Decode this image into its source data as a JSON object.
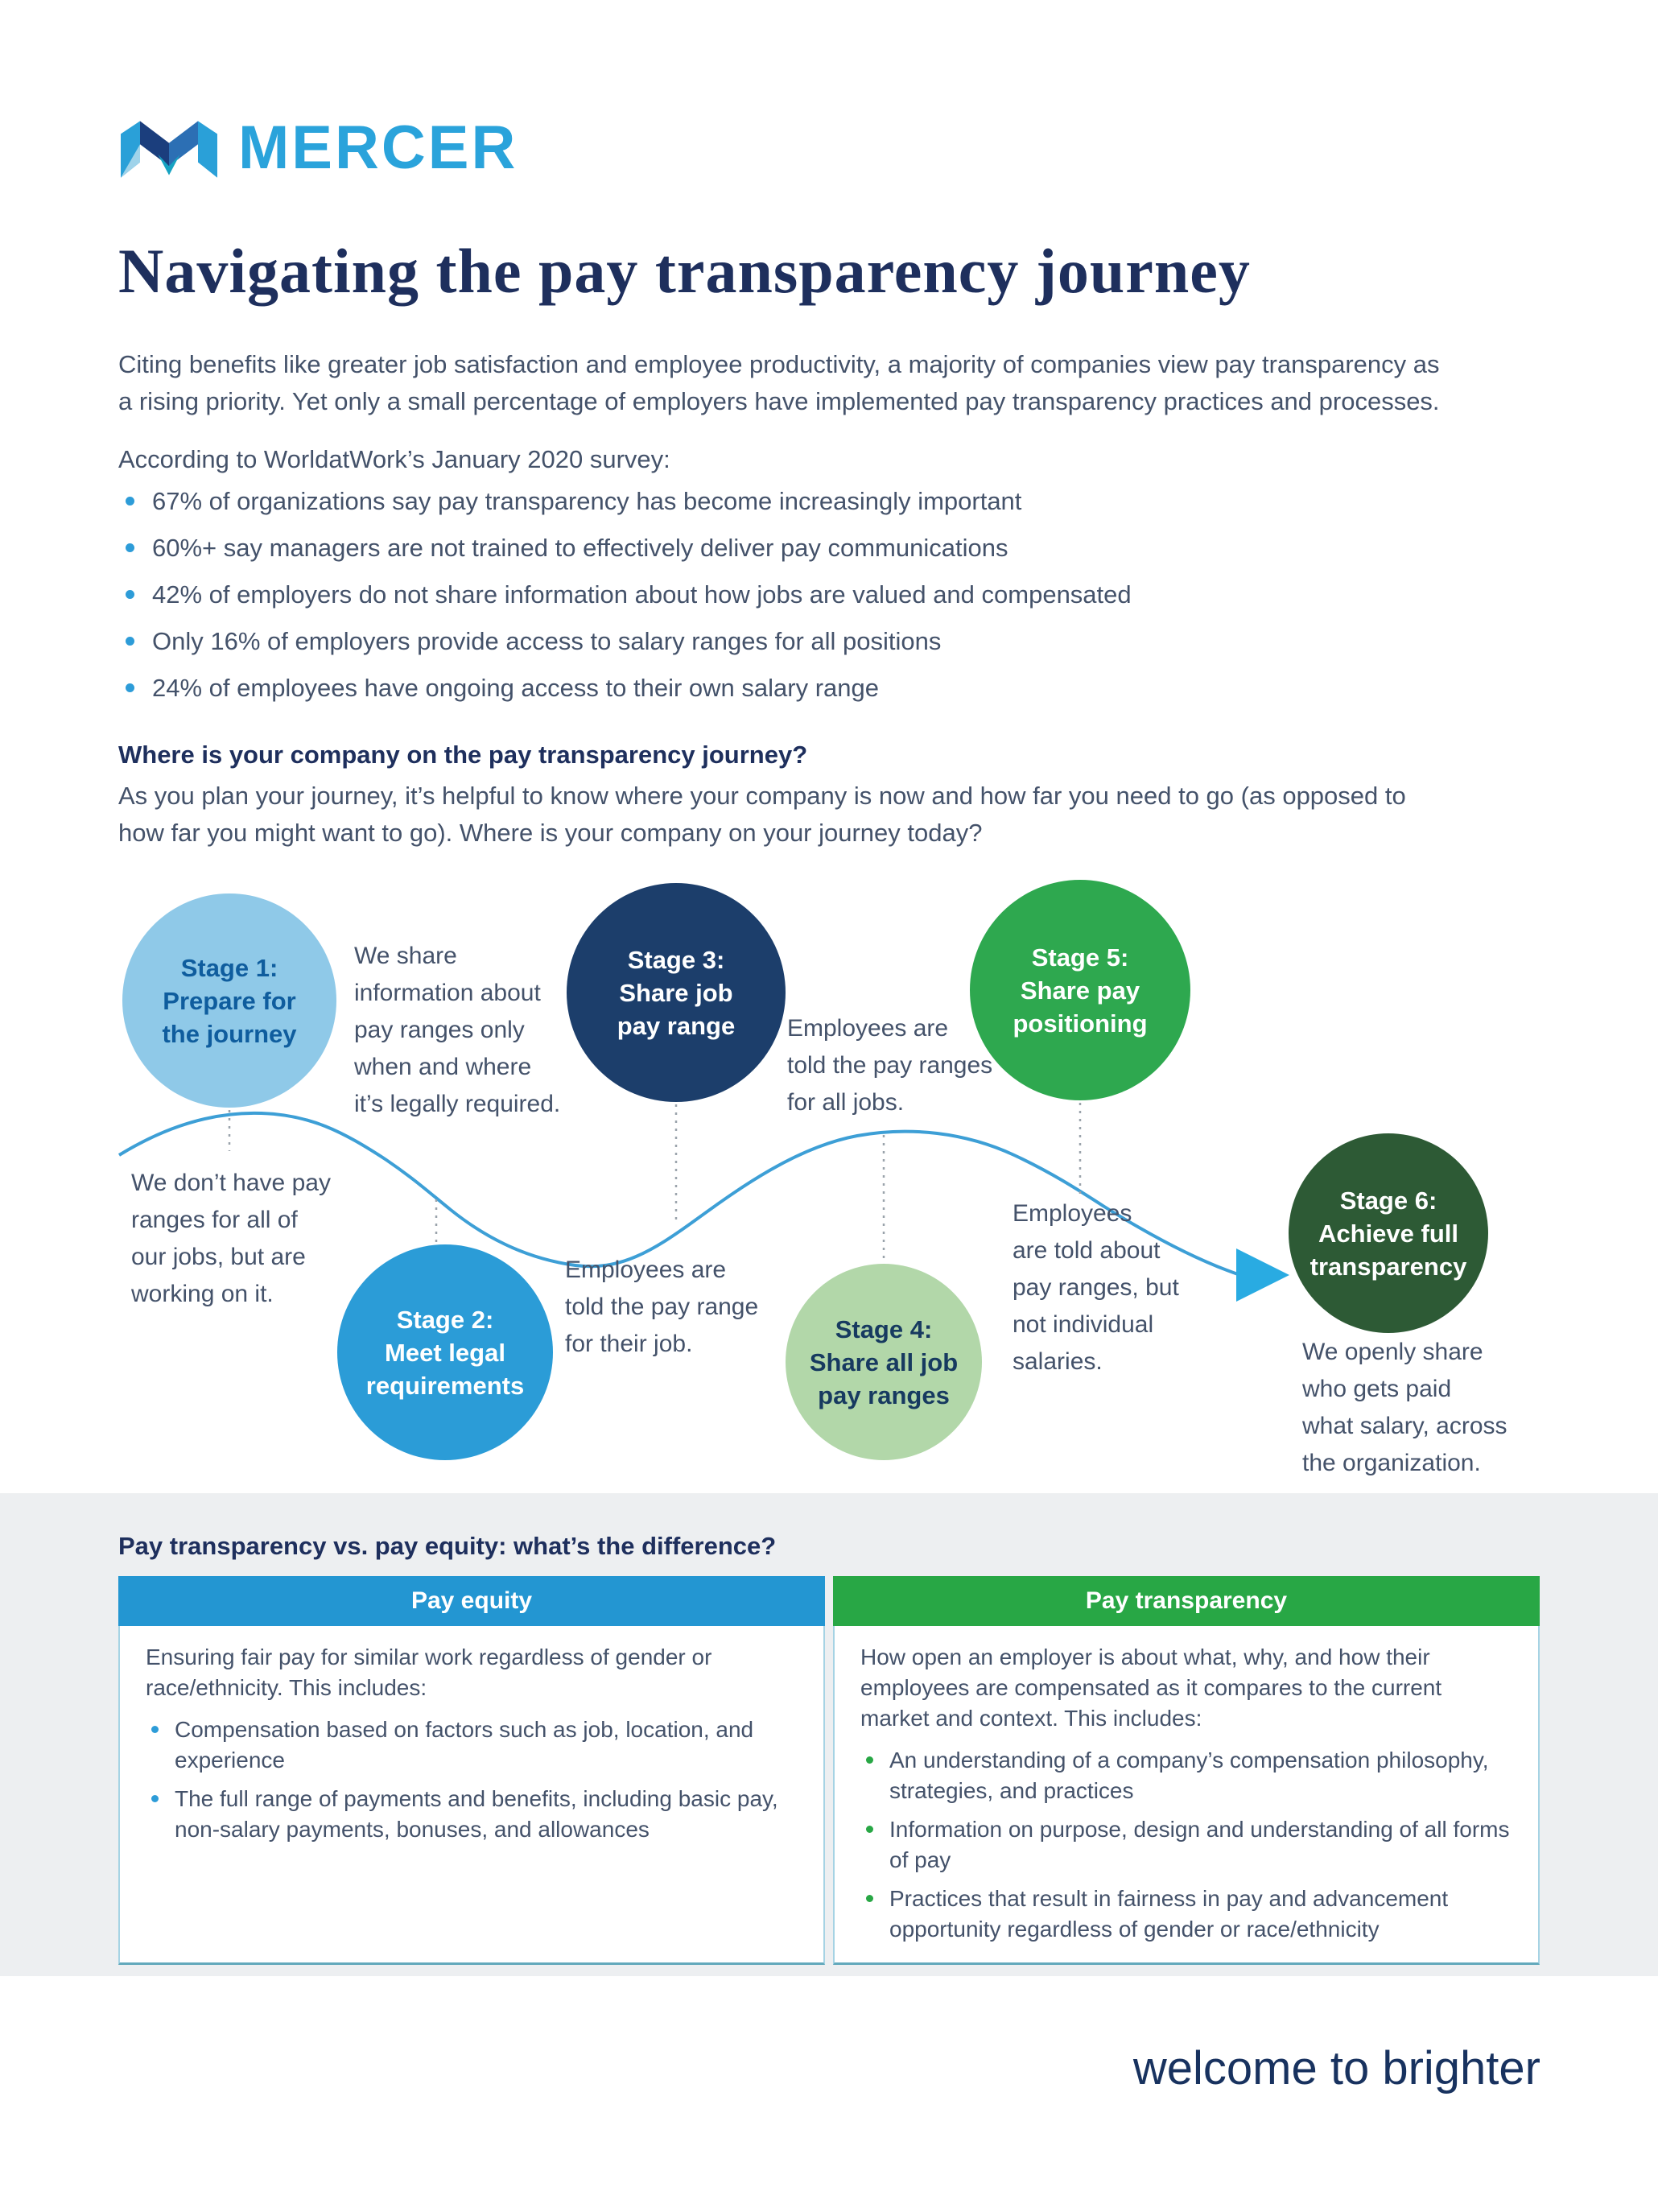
{
  "brand": {
    "wordmark": "MERCER"
  },
  "title": "Navigating the pay transparency journey",
  "intro_lines": [
    "Citing benefits like greater job satisfaction and employee productivity, a majority of companies view pay transparency as",
    "a rising priority. Yet only a small percentage of employers have implemented pay transparency practices and processes."
  ],
  "survey": {
    "heading": "According to WorldatWork’s January 2020 survey:",
    "bullets": [
      "67% of organizations say pay transparency has become increasingly important",
      "60%+ say managers are not trained to effectively deliver pay communications",
      "42% of employers do not share information about how jobs are valued and compensated",
      "Only 16% of employers provide access to salary ranges for all positions",
      "24% of employees have ongoing access to their own salary range"
    ]
  },
  "journey": {
    "heading": "Where is your company on the pay transparency journey?",
    "intro_lines": [
      "As you plan your journey, it’s helpful to know where your company is now and how far you need to go (as opposed to",
      "how far you might want to go). Where is your company on your journey today?"
    ],
    "stages": [
      {
        "lines": [
          "Stage 1:",
          "Prepare for",
          "the journey"
        ],
        "color": "#8FC9E8",
        "label_color": "#0F5D9E"
      },
      {
        "lines": [
          "Stage 2:",
          "Meet legal",
          "requirements"
        ],
        "color": "#2B9CD7",
        "label_color": "#FFFFFF"
      },
      {
        "lines": [
          "Stage 3:",
          "Share job",
          "pay range"
        ],
        "color": "#1C3E6B",
        "label_color": "#FFFFFF"
      },
      {
        "lines": [
          "Stage 4:",
          "Share all job",
          "pay ranges"
        ],
        "color": "#B2D7A9",
        "label_color": "#173A60"
      },
      {
        "lines": [
          "Stage 5:",
          "Share pay",
          "positioning"
        ],
        "color": "#2EA84F",
        "label_color": "#FFFFFF"
      },
      {
        "lines": [
          "Stage 6:",
          "Achieve full",
          "transparency"
        ],
        "color": "#2D5A35",
        "label_color": "#FFFFFF"
      }
    ],
    "annotations": [
      {
        "lines": [
          "We share",
          "information about",
          "pay ranges only",
          "when and where",
          "it’s legally required."
        ]
      },
      {
        "lines": [
          "We don’t have pay",
          "ranges for all of",
          "our jobs, but are",
          "working on it."
        ]
      },
      {
        "lines": [
          "Employees are",
          "told the pay range",
          "for their job."
        ]
      },
      {
        "lines": [
          "Employees are",
          "told the pay ranges",
          "for all jobs."
        ]
      },
      {
        "lines": [
          "Employees",
          "are told about",
          "pay ranges, but",
          "not individual",
          "salaries."
        ]
      },
      {
        "lines": [
          "We openly share",
          "who gets paid",
          "what salary, across",
          "the organization."
        ]
      }
    ]
  },
  "comparison": {
    "heading": "Pay transparency vs. pay equity: what’s the difference?",
    "columns": [
      {
        "header": "Pay equity",
        "header_color": "#2396D2",
        "intro": "Ensuring fair pay for similar work regardless of gender or race/ethnicity. This includes:",
        "bullets": [
          "Compensation based on factors such as job, location, and experience",
          "The full range of payments and benefits, including basic pay, non-salary payments, bonuses, and allowances"
        ]
      },
      {
        "header": "Pay transparency",
        "header_color": "#28A745",
        "intro": "How open an employer is about what, why, and how their employees are compensated as it compares to the current market and context. This includes:",
        "bullets": [
          "An understanding of a company’s compensation philosophy, strategies, and practices",
          "Information on purpose, design and understanding of all forms of pay",
          "Practices that result in fairness in pay and advancement opportunity regardless of gender or race/ethnicity"
        ]
      }
    ]
  },
  "footer": {
    "tagline": "welcome to brighter"
  },
  "colors": {
    "brand_blue": "#2AA3DB",
    "title_navy": "#1E2F5D",
    "body_text": "#44526A",
    "bullet_blue": "#2D9CD8",
    "wave_blue": "#3D9FD6",
    "arrow_blue": "#29ABE2",
    "connector_gray": "#9AA3AB",
    "band_gray": "#EDEFF1",
    "table_border": "#A6D3E4"
  }
}
